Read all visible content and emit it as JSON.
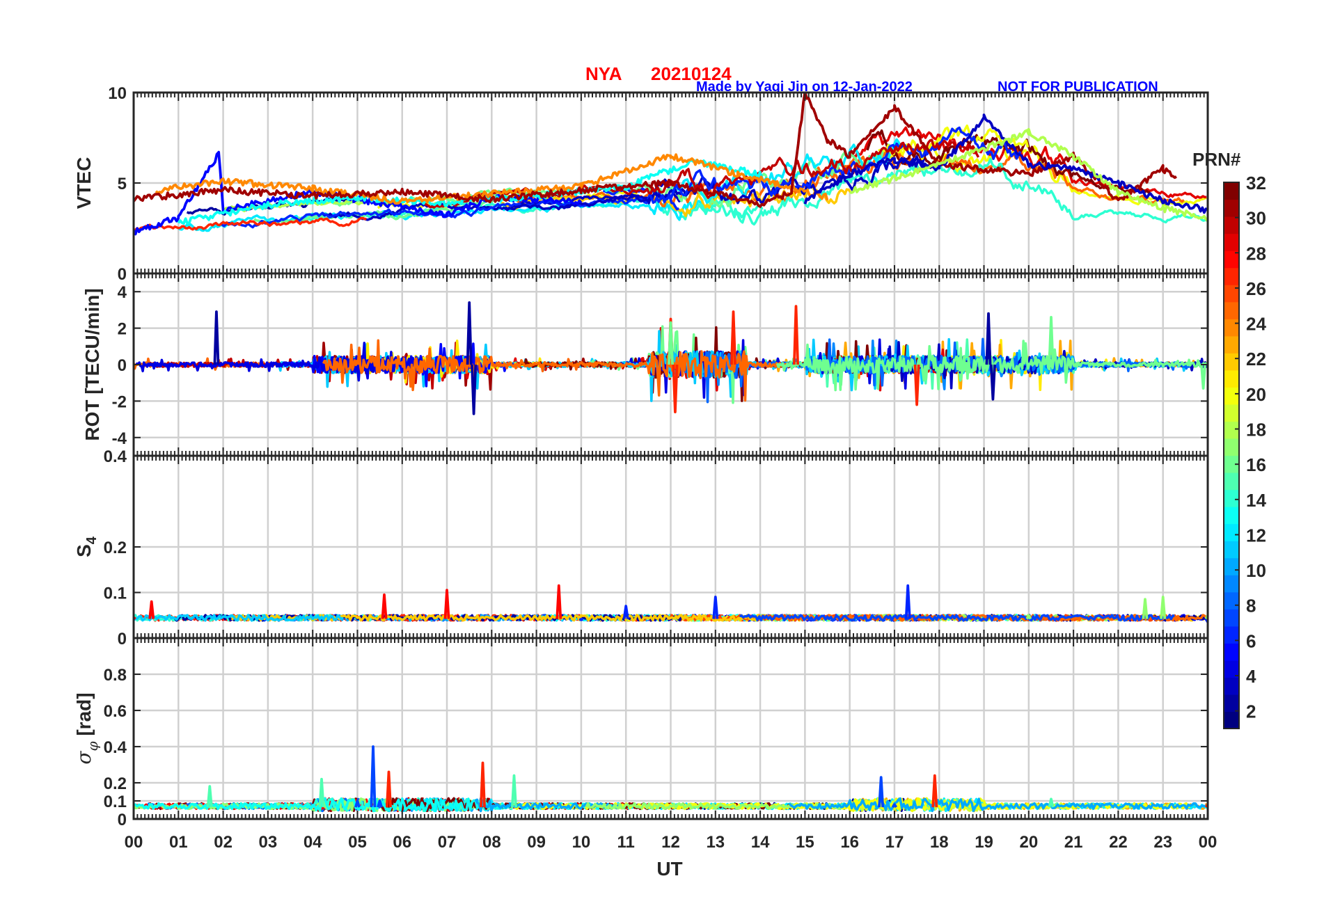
{
  "header": {
    "station": "NYA",
    "date": "20210124",
    "credit": "Made by Yaqi Jin on 12-Jan-2022",
    "notice": "NOT FOR PUBLICATION"
  },
  "colors": {
    "title": "#ff0000",
    "credit": "#0000ff",
    "axis": "#262626",
    "grid": "#d0d0d0"
  },
  "chart_data": {
    "type": "line",
    "x": {
      "label": "UT",
      "range": [
        0,
        24
      ],
      "ticks": [
        "00",
        "01",
        "02",
        "03",
        "04",
        "05",
        "06",
        "07",
        "08",
        "09",
        "10",
        "11",
        "12",
        "13",
        "14",
        "15",
        "16",
        "17",
        "18",
        "19",
        "20",
        "21",
        "22",
        "23",
        "00"
      ]
    },
    "panels": [
      {
        "key": "vtec",
        "ylabel": "VTEC",
        "ylim": [
          0,
          10
        ],
        "yticks": [
          0,
          5,
          10
        ],
        "ytick_labels": [
          "0",
          "5",
          "10"
        ],
        "grid": true,
        "series_summary": [
          {
            "prn": 5,
            "points": [
              [
                0.0,
                2.3
              ],
              [
                1.0,
                3.1
              ],
              [
                1.9,
                6.6
              ],
              [
                2.0,
                3.5
              ],
              [
                4.0,
                4.5
              ],
              [
                6.0,
                3.7
              ],
              [
                7.0,
                3.2
              ],
              [
                8.0,
                4.2
              ],
              [
                10.0,
                4.0
              ]
            ]
          },
          {
            "prn": 13,
            "points": [
              [
                1.0,
                2.8
              ],
              [
                3.0,
                3.8
              ],
              [
                5.0,
                4.2
              ],
              [
                7.0,
                3.9
              ],
              [
                9.0,
                4.3
              ],
              [
                11.0,
                4.8
              ],
              [
                12.5,
                6.2
              ],
              [
                14.0,
                5.5
              ]
            ]
          },
          {
            "prn": 24,
            "points": [
              [
                0.5,
                4.6
              ],
              [
                2.0,
                5.1
              ],
              [
                4.0,
                4.7
              ],
              [
                6.0,
                4.0
              ],
              [
                8.0,
                4.4
              ],
              [
                10.0,
                4.8
              ],
              [
                12.0,
                6.5
              ],
              [
                13.5,
                5.5
              ],
              [
                15.5,
                4.2
              ]
            ]
          },
          {
            "prn": 31,
            "points": [
              [
                0.0,
                4.1
              ],
              [
                2.0,
                4.6
              ],
              [
                4.0,
                4.3
              ],
              [
                6.0,
                4.5
              ],
              [
                8.0,
                4.1
              ],
              [
                10.0,
                4.6
              ],
              [
                12.0,
                5.0
              ],
              [
                14.0,
                3.8
              ],
              [
                14.7,
                4.5
              ],
              [
                15.0,
                10.0
              ],
              [
                15.5,
                7.4
              ],
              [
                16.0,
                6.5
              ],
              [
                17.0,
                9.2
              ],
              [
                18.0,
                6.0
              ],
              [
                20.0,
                5.5
              ],
              [
                21.0,
                6.5
              ],
              [
                22.0,
                4.0
              ],
              [
                23.0,
                5.8
              ],
              [
                23.3,
                5.3
              ]
            ]
          },
          {
            "prn": 3,
            "points": [
              [
                15.0,
                4.0
              ],
              [
                16.0,
                5.5
              ],
              [
                17.0,
                6.3
              ],
              [
                18.0,
                5.8
              ],
              [
                19.0,
                8.6
              ],
              [
                20.0,
                6.0
              ],
              [
                21.0,
                5.8
              ],
              [
                22.0,
                5.0
              ],
              [
                23.0,
                4.0
              ],
              [
                24.0,
                3.5
              ]
            ]
          },
          {
            "prn": 18,
            "points": [
              [
                16.0,
                4.5
              ],
              [
                18.0,
                6.0
              ],
              [
                20.0,
                7.8
              ],
              [
                21.0,
                6.5
              ],
              [
                22.0,
                4.5
              ],
              [
                23.0,
                3.6
              ],
              [
                24.0,
                3.0
              ]
            ]
          }
        ]
      },
      {
        "key": "rot",
        "ylabel": "ROT [TECU/min]",
        "ylim": [
          -5,
          5
        ],
        "yticks": [
          -4,
          -2,
          0,
          2,
          4
        ],
        "ytick_labels": [
          "-4",
          "-2",
          "0",
          "2",
          "4"
        ],
        "grid": true,
        "series_summary": [
          {
            "prn": 2,
            "points": [
              [
                1.85,
                2.9
              ],
              [
                7.5,
                3.4
              ],
              [
                7.6,
                -2.7
              ],
              [
                19.1,
                2.8
              ],
              [
                19.2,
                -1.9
              ]
            ]
          },
          {
            "prn": 27,
            "points": [
              [
                12.0,
                2.5
              ],
              [
                12.1,
                -2.6
              ],
              [
                13.4,
                2.9
              ],
              [
                14.8,
                3.2
              ],
              [
                17.5,
                -2.2
              ]
            ]
          },
          {
            "prn": 16,
            "points": [
              [
                12.0,
                2.3
              ],
              [
                20.5,
                2.6
              ],
              [
                23.9,
                -1.3
              ]
            ]
          }
        ]
      },
      {
        "key": "s4",
        "ylabel": "S4",
        "ylim": [
          0,
          0.4
        ],
        "yticks": [
          0,
          0.1,
          0.2,
          0.4
        ],
        "ytick_labels": [
          "0",
          "0.1",
          "0.2",
          "0.4"
        ],
        "grid": true,
        "series_summary": [
          {
            "prn": 28,
            "points": [
              [
                0.0,
                0.045
              ],
              [
                0.4,
                0.08
              ],
              [
                5.6,
                0.095
              ],
              [
                7.0,
                0.105
              ],
              [
                9.5,
                0.115
              ],
              [
                24.0,
                0.045
              ]
            ]
          },
          {
            "prn": 6,
            "points": [
              [
                10.0,
                0.04
              ],
              [
                11.0,
                0.07
              ],
              [
                13.0,
                0.09
              ],
              [
                17.3,
                0.115
              ],
              [
                24.0,
                0.035
              ]
            ]
          },
          {
            "prn": 17,
            "points": [
              [
                20.0,
                0.05
              ],
              [
                22.6,
                0.085
              ],
              [
                23.0,
                0.09
              ],
              [
                24.0,
                0.05
              ]
            ]
          }
        ]
      },
      {
        "key": "sigma",
        "ylabel": "σ_φ [rad]",
        "ylim": [
          0,
          1
        ],
        "yticks": [
          0,
          0.1,
          0.2,
          0.4,
          0.6,
          0.8
        ],
        "ytick_labels": [
          "0",
          "0.1",
          "0.2",
          "0.4",
          "0.6",
          "0.8"
        ],
        "grid": true,
        "series_summary": [
          {
            "prn": 7,
            "points": [
              [
                5.0,
                0.1
              ],
              [
                5.35,
                0.4
              ],
              [
                5.5,
                0.1
              ],
              [
                16.7,
                0.23
              ],
              [
                17.0,
                0.08
              ]
            ]
          },
          {
            "prn": 27,
            "points": [
              [
                5.7,
                0.26
              ],
              [
                7.8,
                0.31
              ],
              [
                17.9,
                0.24
              ],
              [
                24.0,
                0.08
              ]
            ]
          },
          {
            "prn": 15,
            "points": [
              [
                1.7,
                0.18
              ],
              [
                4.2,
                0.22
              ],
              [
                8.5,
                0.24
              ],
              [
                20.5,
                0.11
              ]
            ]
          }
        ]
      }
    ],
    "colorbar": {
      "label": "PRN#",
      "range": [
        1,
        32
      ],
      "ticks": [
        2,
        4,
        6,
        8,
        10,
        12,
        14,
        16,
        18,
        20,
        22,
        24,
        26,
        28,
        30,
        32
      ],
      "ticks_labels": [
        "2",
        "4",
        "6",
        "8",
        "10",
        "12",
        "14",
        "16",
        "18",
        "20",
        "22",
        "24",
        "26",
        "28",
        "30",
        "32"
      ],
      "colormap": "jet"
    }
  }
}
